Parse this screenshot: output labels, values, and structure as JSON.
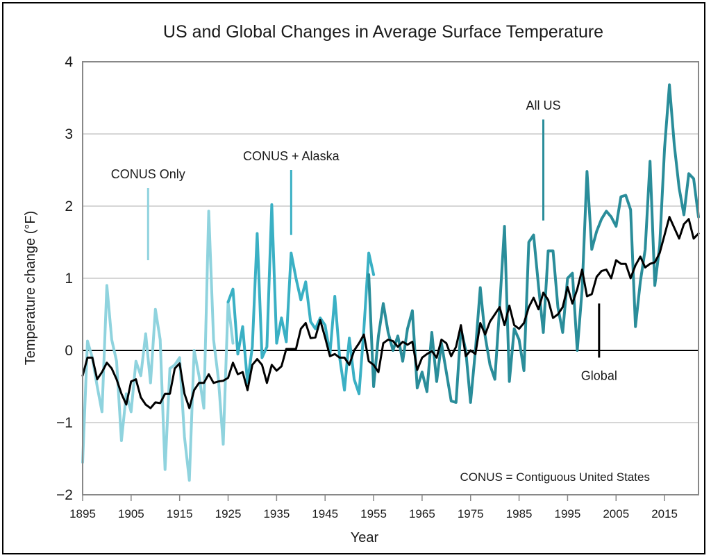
{
  "chart_data": {
    "type": "line",
    "title": "US and Global Changes in Average Surface Temperature",
    "xlabel": "Year",
    "ylabel": "Temperature change (°F)",
    "xlim": [
      1895,
      2022
    ],
    "ylim": [
      -2,
      4
    ],
    "x_ticks": [
      1895,
      1905,
      1915,
      1925,
      1935,
      1945,
      1955,
      1965,
      1975,
      1985,
      1995,
      2005,
      2015
    ],
    "y_ticks": [
      4,
      3,
      2,
      1,
      0,
      -1,
      -2
    ],
    "y_tick_labels": [
      "4",
      "3",
      "2",
      "1",
      "0",
      "−1",
      "−2"
    ],
    "gridlines": true,
    "series": [
      {
        "name": "CONUS Only",
        "color": "#8fd3de",
        "x": [
          1895,
          1896,
          1897,
          1898,
          1899,
          1900,
          1901,
          1902,
          1903,
          1904,
          1905,
          1906,
          1907,
          1908,
          1909,
          1910,
          1911,
          1912,
          1913,
          1914,
          1915,
          1916,
          1917,
          1918,
          1919,
          1920,
          1921,
          1922,
          1923,
          1924,
          1925,
          1926
        ],
        "values": [
          -1.55,
          0.13,
          -0.1,
          -0.5,
          -0.85,
          0.9,
          0.15,
          -0.15,
          -1.25,
          -0.6,
          -0.85,
          -0.15,
          -0.35,
          0.23,
          -0.45,
          0.57,
          0.15,
          -1.65,
          -0.25,
          -0.2,
          -0.1,
          -1.2,
          -1.8,
          0.0,
          -0.35,
          -0.8,
          1.93,
          0.15,
          -0.4,
          -1.3,
          0.67,
          0.1
        ]
      },
      {
        "name": "CONUS + Alaska",
        "color": "#3ab0c4",
        "x": [
          1925,
          1926,
          1927,
          1928,
          1929,
          1930,
          1931,
          1932,
          1933,
          1934,
          1935,
          1936,
          1937,
          1938,
          1939,
          1940,
          1941,
          1942,
          1943,
          1944,
          1945,
          1946,
          1947,
          1948,
          1949,
          1950,
          1951,
          1952,
          1953,
          1954,
          1955
        ],
        "values": [
          0.67,
          0.85,
          -0.05,
          0.33,
          -0.45,
          0.05,
          1.62,
          -0.1,
          0.05,
          2.02,
          0.1,
          0.45,
          0.12,
          1.35,
          1.0,
          0.7,
          0.95,
          0.4,
          0.3,
          0.45,
          0.35,
          -0.05,
          0.75,
          -0.1,
          -0.55,
          0.17,
          -0.4,
          -0.6,
          0.3,
          1.35,
          1.05
        ]
      },
      {
        "name": "All US",
        "color": "#2a8d9a",
        "x": [
          1954,
          1955,
          1956,
          1957,
          1958,
          1959,
          1960,
          1961,
          1962,
          1963,
          1964,
          1965,
          1966,
          1967,
          1968,
          1969,
          1970,
          1971,
          1972,
          1973,
          1974,
          1975,
          1976,
          1977,
          1978,
          1979,
          1980,
          1981,
          1982,
          1983,
          1984,
          1985,
          1986,
          1987,
          1988,
          1989,
          1990,
          1991,
          1992,
          1993,
          1994,
          1995,
          1996,
          1997,
          1998,
          1999,
          2000,
          2001,
          2002,
          2003,
          2004,
          2005,
          2006,
          2007,
          2008,
          2009,
          2010,
          2011,
          2012,
          2013,
          2014,
          2015,
          2016,
          2017,
          2018,
          2019,
          2020,
          2021,
          2022
        ],
        "values": [
          1.05,
          -0.5,
          0.2,
          0.65,
          0.25,
          0.0,
          0.2,
          -0.15,
          0.3,
          0.55,
          -0.52,
          -0.3,
          -0.57,
          0.25,
          -0.43,
          0.1,
          -0.3,
          -0.7,
          -0.72,
          0.3,
          0.0,
          -0.72,
          0.0,
          0.87,
          0.2,
          -0.2,
          -0.4,
          0.6,
          1.72,
          -0.43,
          0.3,
          0.15,
          -0.28,
          1.5,
          1.6,
          0.9,
          0.25,
          1.38,
          1.38,
          0.6,
          0.25,
          1.0,
          1.07,
          0.0,
          0.85,
          2.48,
          1.4,
          1.65,
          1.82,
          1.93,
          1.85,
          1.72,
          2.13,
          2.15,
          1.95,
          0.33,
          0.95,
          1.4,
          2.62,
          0.9,
          1.45,
          2.8,
          3.68,
          2.85,
          2.25,
          1.88,
          2.45,
          2.38,
          1.85
        ]
      },
      {
        "name": "Global",
        "color": "#000000",
        "x": [
          1895,
          1896,
          1897,
          1898,
          1899,
          1900,
          1901,
          1902,
          1903,
          1904,
          1905,
          1906,
          1907,
          1908,
          1909,
          1910,
          1911,
          1912,
          1913,
          1914,
          1915,
          1916,
          1917,
          1918,
          1919,
          1920,
          1921,
          1922,
          1923,
          1924,
          1925,
          1926,
          1927,
          1928,
          1929,
          1930,
          1931,
          1932,
          1933,
          1934,
          1935,
          1936,
          1937,
          1938,
          1939,
          1940,
          1941,
          1942,
          1943,
          1944,
          1945,
          1946,
          1947,
          1948,
          1949,
          1950,
          1951,
          1952,
          1953,
          1954,
          1955,
          1956,
          1957,
          1958,
          1959,
          1960,
          1961,
          1962,
          1963,
          1964,
          1965,
          1966,
          1967,
          1968,
          1969,
          1970,
          1971,
          1972,
          1973,
          1974,
          1975,
          1976,
          1977,
          1978,
          1979,
          1980,
          1981,
          1982,
          1983,
          1984,
          1985,
          1986,
          1987,
          1988,
          1989,
          1990,
          1991,
          1992,
          1993,
          1994,
          1995,
          1996,
          1997,
          1998,
          1999,
          2000,
          2001,
          2002,
          2003,
          2004,
          2005,
          2006,
          2007,
          2008,
          2009,
          2010,
          2011,
          2012,
          2013,
          2014,
          2015,
          2016,
          2017,
          2018,
          2019,
          2020,
          2021,
          2022
        ],
        "values": [
          -0.35,
          -0.1,
          -0.1,
          -0.4,
          -0.3,
          -0.17,
          -0.25,
          -0.4,
          -0.6,
          -0.75,
          -0.43,
          -0.4,
          -0.65,
          -0.75,
          -0.8,
          -0.72,
          -0.73,
          -0.6,
          -0.6,
          -0.25,
          -0.18,
          -0.6,
          -0.8,
          -0.55,
          -0.45,
          -0.45,
          -0.33,
          -0.45,
          -0.43,
          -0.42,
          -0.38,
          -0.17,
          -0.33,
          -0.3,
          -0.55,
          -0.2,
          -0.12,
          -0.2,
          -0.45,
          -0.2,
          -0.28,
          -0.22,
          0.02,
          0.02,
          0.02,
          0.3,
          0.38,
          0.17,
          0.18,
          0.42,
          0.18,
          -0.08,
          -0.05,
          -0.1,
          -0.1,
          -0.2,
          0.0,
          0.1,
          0.22,
          -0.15,
          -0.2,
          -0.3,
          0.1,
          0.15,
          0.13,
          0.05,
          0.12,
          0.08,
          0.12,
          -0.27,
          -0.1,
          -0.05,
          -0.01,
          -0.1,
          0.15,
          0.1,
          -0.08,
          0.05,
          0.35,
          -0.08,
          0.0,
          -0.05,
          0.38,
          0.22,
          0.4,
          0.5,
          0.6,
          0.35,
          0.62,
          0.35,
          0.3,
          0.38,
          0.6,
          0.73,
          0.57,
          0.8,
          0.7,
          0.45,
          0.5,
          0.6,
          0.88,
          0.65,
          0.85,
          1.12,
          0.75,
          0.78,
          1.02,
          1.1,
          1.12,
          1.0,
          1.25,
          1.2,
          1.2,
          1.0,
          1.18,
          1.3,
          1.15,
          1.2,
          1.22,
          1.35,
          1.6,
          1.85,
          1.7,
          1.55,
          1.75,
          1.82,
          1.55,
          1.62
        ]
      }
    ],
    "annotations": [
      {
        "text": "CONUS Only",
        "series": "CONUS Only",
        "leader_x": 1908.5,
        "leader_y": [
          1.25,
          2.25
        ]
      },
      {
        "text": "CONUS + Alaska",
        "series": "CONUS + Alaska",
        "leader_x": 1938,
        "leader_y": [
          1.6,
          2.5
        ]
      },
      {
        "text": "All US",
        "series": "All US",
        "leader_x": 1990,
        "leader_y": [
          1.8,
          3.2
        ]
      },
      {
        "text": "Global",
        "series": "Global",
        "leader_x": 2001.5,
        "leader_y": [
          -0.1,
          0.65
        ]
      }
    ],
    "footnote": "CONUS = Contiguous United States"
  }
}
